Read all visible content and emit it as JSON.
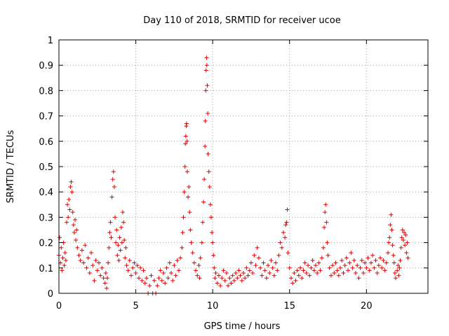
{
  "chart_data": {
    "type": "scatter",
    "title": "Day 110 of 2018, SRMTID for receiver ucoe",
    "xlabel": "GPS time / hours",
    "ylabel": "SRMTID / TECUs",
    "xlim": [
      0,
      24
    ],
    "ylim": [
      0,
      1
    ],
    "xticks": [
      0,
      5,
      10,
      15,
      20
    ],
    "xtick_labels": [
      "0",
      "5",
      "10",
      "15",
      "20"
    ],
    "yticks": [
      0,
      0.1,
      0.2,
      0.3,
      0.4,
      0.5,
      0.6,
      0.7,
      0.8,
      0.9,
      1
    ],
    "ytick_labels": [
      "0",
      "0.1",
      "0.2",
      "0.3",
      "0.4",
      "0.5",
      "0.6",
      "0.7",
      "0.8",
      "0.9",
      "1"
    ],
    "grid": true,
    "marker": "+",
    "color": "#e00000",
    "series": [
      {
        "name": "SRMTID",
        "points": [
          [
            0.0,
            0.15
          ],
          [
            0.05,
            0.22
          ],
          [
            0.1,
            0.12
          ],
          [
            0.15,
            0.18
          ],
          [
            0.2,
            0.09
          ],
          [
            0.25,
            0.14
          ],
          [
            0.3,
            0.2
          ],
          [
            0.35,
            0.11
          ],
          [
            0.4,
            0.16
          ],
          [
            0.45,
            0.13
          ],
          [
            0.5,
            0.28
          ],
          [
            0.55,
            0.35
          ],
          [
            0.6,
            0.3
          ],
          [
            0.65,
            0.37
          ],
          [
            0.7,
            0.33
          ],
          [
            0.75,
            0.42
          ],
          [
            0.8,
            0.44
          ],
          [
            0.85,
            0.4
          ],
          [
            0.9,
            0.32
          ],
          [
            0.95,
            0.27
          ],
          [
            1.0,
            0.24
          ],
          [
            1.05,
            0.29
          ],
          [
            1.1,
            0.21
          ],
          [
            1.15,
            0.25
          ],
          [
            1.2,
            0.18
          ],
          [
            1.3,
            0.15
          ],
          [
            1.4,
            0.13
          ],
          [
            1.5,
            0.17
          ],
          [
            1.6,
            0.12
          ],
          [
            1.7,
            0.19
          ],
          [
            1.8,
            0.1
          ],
          [
            1.9,
            0.14
          ],
          [
            2.0,
            0.08
          ],
          [
            2.1,
            0.16
          ],
          [
            2.2,
            0.11
          ],
          [
            2.3,
            0.05
          ],
          [
            2.4,
            0.13
          ],
          [
            2.5,
            0.09
          ],
          [
            2.6,
            0.12
          ],
          [
            2.7,
            0.07
          ],
          [
            2.8,
            0.1
          ],
          [
            2.9,
            0.06
          ],
          [
            3.0,
            0.04
          ],
          [
            3.05,
            0.08
          ],
          [
            3.1,
            0.02
          ],
          [
            3.15,
            0.06
          ],
          [
            3.2,
            0.12
          ],
          [
            3.25,
            0.18
          ],
          [
            3.3,
            0.24
          ],
          [
            3.35,
            0.28
          ],
          [
            3.4,
            0.22
          ],
          [
            3.45,
            0.38
          ],
          [
            3.5,
            0.45
          ],
          [
            3.55,
            0.48
          ],
          [
            3.6,
            0.42
          ],
          [
            3.65,
            0.3
          ],
          [
            3.7,
            0.2
          ],
          [
            3.75,
            0.25
          ],
          [
            3.8,
            0.15
          ],
          [
            3.85,
            0.19
          ],
          [
            3.9,
            0.13
          ],
          [
            3.95,
            0.22
          ],
          [
            4.0,
            0.17
          ],
          [
            4.05,
            0.26
          ],
          [
            4.1,
            0.2
          ],
          [
            4.15,
            0.32
          ],
          [
            4.2,
            0.28
          ],
          [
            4.25,
            0.21
          ],
          [
            4.3,
            0.14
          ],
          [
            4.35,
            0.18
          ],
          [
            4.4,
            0.11
          ],
          [
            4.5,
            0.09
          ],
          [
            4.6,
            0.13
          ],
          [
            4.7,
            0.07
          ],
          [
            4.8,
            0.1
          ],
          [
            4.9,
            0.12
          ],
          [
            5.0,
            0.08
          ],
          [
            5.1,
            0.11
          ],
          [
            5.2,
            0.06
          ],
          [
            5.3,
            0.1
          ],
          [
            5.4,
            0.05
          ],
          [
            5.5,
            0.09
          ],
          [
            5.6,
            0.04
          ],
          [
            5.7,
            0.06
          ],
          [
            5.8,
            0.0
          ],
          [
            5.9,
            0.03
          ],
          [
            6.0,
            0.07
          ],
          [
            6.1,
            0.0
          ],
          [
            6.2,
            0.05
          ],
          [
            6.3,
            0.0
          ],
          [
            6.4,
            0.03
          ],
          [
            6.5,
            0.06
          ],
          [
            6.6,
            0.09
          ],
          [
            6.7,
            0.05
          ],
          [
            6.8,
            0.08
          ],
          [
            6.9,
            0.04
          ],
          [
            7.0,
            0.1
          ],
          [
            7.1,
            0.06
          ],
          [
            7.2,
            0.12
          ],
          [
            7.3,
            0.08
          ],
          [
            7.4,
            0.05
          ],
          [
            7.5,
            0.11
          ],
          [
            7.6,
            0.07
          ],
          [
            7.7,
            0.13
          ],
          [
            7.8,
            0.09
          ],
          [
            7.9,
            0.14
          ],
          [
            8.0,
            0.18
          ],
          [
            8.05,
            0.24
          ],
          [
            8.1,
            0.3
          ],
          [
            8.15,
            0.4
          ],
          [
            8.2,
            0.5
          ],
          [
            8.22,
            0.59
          ],
          [
            8.25,
            0.62
          ],
          [
            8.28,
            0.66
          ],
          [
            8.3,
            0.67
          ],
          [
            8.33,
            0.6
          ],
          [
            8.35,
            0.48
          ],
          [
            8.4,
            0.38
          ],
          [
            8.45,
            0.42
          ],
          [
            8.5,
            0.32
          ],
          [
            8.55,
            0.25
          ],
          [
            8.6,
            0.2
          ],
          [
            8.7,
            0.16
          ],
          [
            8.8,
            0.12
          ],
          [
            8.9,
            0.09
          ],
          [
            9.0,
            0.07
          ],
          [
            9.1,
            0.11
          ],
          [
            9.15,
            0.06
          ],
          [
            9.2,
            0.14
          ],
          [
            9.3,
            0.2
          ],
          [
            9.35,
            0.28
          ],
          [
            9.4,
            0.36
          ],
          [
            9.45,
            0.45
          ],
          [
            9.5,
            0.58
          ],
          [
            9.52,
            0.68
          ],
          [
            9.55,
            0.8
          ],
          [
            9.57,
            0.88
          ],
          [
            9.6,
            0.93
          ],
          [
            9.62,
            0.9
          ],
          [
            9.65,
            0.82
          ],
          [
            9.68,
            0.71
          ],
          [
            9.7,
            0.55
          ],
          [
            9.75,
            0.48
          ],
          [
            9.8,
            0.42
          ],
          [
            9.85,
            0.35
          ],
          [
            9.9,
            0.3
          ],
          [
            9.95,
            0.24
          ],
          [
            10.0,
            0.2
          ],
          [
            10.05,
            0.15
          ],
          [
            10.1,
            0.1
          ],
          [
            10.15,
            0.06
          ],
          [
            10.2,
            0.08
          ],
          [
            10.3,
            0.04
          ],
          [
            10.4,
            0.07
          ],
          [
            10.5,
            0.03
          ],
          [
            10.6,
            0.06
          ],
          [
            10.7,
            0.09
          ],
          [
            10.8,
            0.05
          ],
          [
            10.9,
            0.08
          ],
          [
            11.0,
            0.03
          ],
          [
            11.1,
            0.06
          ],
          [
            11.2,
            0.04
          ],
          [
            11.3,
            0.07
          ],
          [
            11.4,
            0.05
          ],
          [
            11.5,
            0.08
          ],
          [
            11.6,
            0.06
          ],
          [
            11.7,
            0.09
          ],
          [
            11.8,
            0.07
          ],
          [
            11.9,
            0.05
          ],
          [
            12.0,
            0.08
          ],
          [
            12.1,
            0.06
          ],
          [
            12.2,
            0.1
          ],
          [
            12.3,
            0.07
          ],
          [
            12.4,
            0.09
          ],
          [
            12.5,
            0.12
          ],
          [
            12.6,
            0.08
          ],
          [
            12.7,
            0.15
          ],
          [
            12.8,
            0.11
          ],
          [
            12.9,
            0.18
          ],
          [
            13.0,
            0.14
          ],
          [
            13.1,
            0.1
          ],
          [
            13.2,
            0.07
          ],
          [
            13.3,
            0.12
          ],
          [
            13.4,
            0.09
          ],
          [
            13.5,
            0.06
          ],
          [
            13.6,
            0.11
          ],
          [
            13.7,
            0.08
          ],
          [
            13.8,
            0.13
          ],
          [
            13.9,
            0.1
          ],
          [
            14.0,
            0.07
          ],
          [
            14.1,
            0.12
          ],
          [
            14.2,
            0.09
          ],
          [
            14.3,
            0.15
          ],
          [
            14.4,
            0.2
          ],
          [
            14.5,
            0.18
          ],
          [
            14.6,
            0.24
          ],
          [
            14.7,
            0.22
          ],
          [
            14.75,
            0.27
          ],
          [
            14.8,
            0.28
          ],
          [
            14.85,
            0.33
          ],
          [
            14.9,
            0.16
          ],
          [
            15.0,
            0.1
          ],
          [
            15.1,
            0.06
          ],
          [
            15.2,
            0.04
          ],
          [
            15.3,
            0.08
          ],
          [
            15.4,
            0.05
          ],
          [
            15.5,
            0.09
          ],
          [
            15.6,
            0.07
          ],
          [
            15.7,
            0.1
          ],
          [
            15.8,
            0.06
          ],
          [
            15.9,
            0.09
          ],
          [
            16.0,
            0.12
          ],
          [
            16.1,
            0.08
          ],
          [
            16.2,
            0.11
          ],
          [
            16.3,
            0.07
          ],
          [
            16.4,
            0.1
          ],
          [
            16.5,
            0.13
          ],
          [
            16.6,
            0.09
          ],
          [
            16.7,
            0.11
          ],
          [
            16.8,
            0.08
          ],
          [
            16.9,
            0.12
          ],
          [
            17.0,
            0.09
          ],
          [
            17.1,
            0.14
          ],
          [
            17.2,
            0.18
          ],
          [
            17.25,
            0.26
          ],
          [
            17.3,
            0.32
          ],
          [
            17.35,
            0.35
          ],
          [
            17.4,
            0.28
          ],
          [
            17.45,
            0.2
          ],
          [
            17.5,
            0.15
          ],
          [
            17.6,
            0.1
          ],
          [
            17.7,
            0.07
          ],
          [
            17.8,
            0.11
          ],
          [
            17.9,
            0.08
          ],
          [
            18.0,
            0.12
          ],
          [
            18.1,
            0.09
          ],
          [
            18.2,
            0.07
          ],
          [
            18.3,
            0.1
          ],
          [
            18.4,
            0.13
          ],
          [
            18.5,
            0.08
          ],
          [
            18.6,
            0.11
          ],
          [
            18.7,
            0.14
          ],
          [
            18.8,
            0.09
          ],
          [
            18.9,
            0.12
          ],
          [
            19.0,
            0.16
          ],
          [
            19.1,
            0.1
          ],
          [
            19.2,
            0.13
          ],
          [
            19.3,
            0.08
          ],
          [
            19.4,
            0.11
          ],
          [
            19.5,
            0.06
          ],
          [
            19.6,
            0.1
          ],
          [
            19.7,
            0.13
          ],
          [
            19.8,
            0.08
          ],
          [
            19.9,
            0.12
          ],
          [
            20.0,
            0.1
          ],
          [
            20.1,
            0.14
          ],
          [
            20.2,
            0.09
          ],
          [
            20.3,
            0.12
          ],
          [
            20.4,
            0.15
          ],
          [
            20.5,
            0.1
          ],
          [
            20.6,
            0.13
          ],
          [
            20.7,
            0.08
          ],
          [
            20.8,
            0.11
          ],
          [
            20.9,
            0.14
          ],
          [
            21.0,
            0.1
          ],
          [
            21.1,
            0.13
          ],
          [
            21.2,
            0.09
          ],
          [
            21.3,
            0.12
          ],
          [
            21.4,
            0.16
          ],
          [
            21.45,
            0.2
          ],
          [
            21.5,
            0.22
          ],
          [
            21.55,
            0.27
          ],
          [
            21.6,
            0.31
          ],
          [
            21.65,
            0.25
          ],
          [
            21.7,
            0.19
          ],
          [
            21.75,
            0.15
          ],
          [
            21.8,
            0.12
          ],
          [
            21.85,
            0.08
          ],
          [
            21.9,
            0.06
          ],
          [
            22.0,
            0.09
          ],
          [
            22.05,
            0.11
          ],
          [
            22.1,
            0.07
          ],
          [
            22.15,
            0.1
          ],
          [
            22.2,
            0.13
          ],
          [
            22.25,
            0.18
          ],
          [
            22.3,
            0.22
          ],
          [
            22.35,
            0.25
          ],
          [
            22.4,
            0.21
          ],
          [
            22.45,
            0.24
          ],
          [
            22.5,
            0.19
          ],
          [
            22.55,
            0.23
          ],
          [
            22.6,
            0.16
          ],
          [
            22.65,
            0.2
          ],
          [
            22.7,
            0.14
          ]
        ]
      }
    ]
  }
}
